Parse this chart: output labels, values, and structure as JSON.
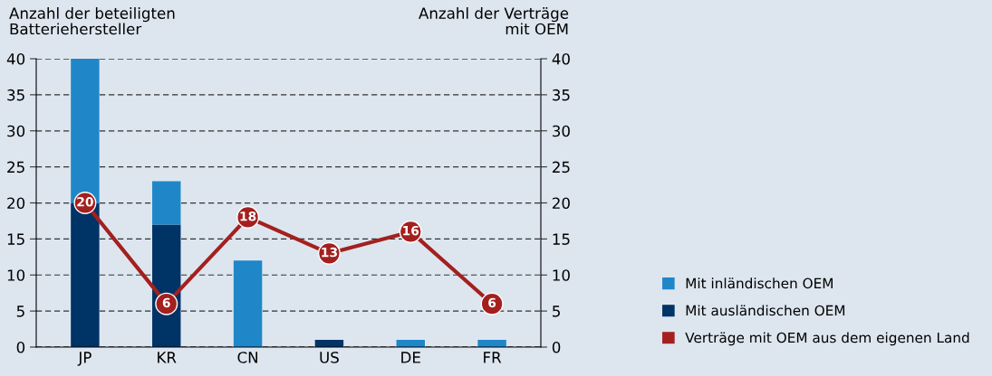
{
  "chart_data": {
    "type": "bar",
    "stacked": true,
    "ylabel": "Anzahl der beteiligten\nBatteriehersteller",
    "y2label": "Anzahl der Verträge\nmit OEM",
    "categories": [
      "JP",
      "KR",
      "CN",
      "US",
      "DE",
      "FR"
    ],
    "series": [
      {
        "name": "Mit ausländischen OEM",
        "color": "#003366",
        "values": [
          20,
          17,
          0,
          1,
          0,
          0
        ]
      },
      {
        "name": "Mit inländischen OEM",
        "color": "#1f87c8",
        "values": [
          20,
          6,
          12,
          0,
          1,
          1
        ]
      },
      {
        "name": "Verträge mit OEM aus dem eigenen Land",
        "type": "line",
        "axis": "y2",
        "color": "#a3201f",
        "marker": "circle",
        "values": [
          20,
          6,
          18,
          13,
          16,
          6
        ],
        "value_labels": [
          "20",
          "6",
          "18",
          "13",
          "16",
          "6"
        ]
      }
    ],
    "ylim": [
      0,
      40
    ],
    "yticks": [
      0,
      5,
      10,
      15,
      20,
      25,
      30,
      35,
      40
    ],
    "y2lim": [
      0,
      40
    ],
    "y2ticks": [
      0,
      5,
      10,
      15,
      20,
      25,
      30,
      35,
      40
    ],
    "grid": "y",
    "legend": "right"
  }
}
